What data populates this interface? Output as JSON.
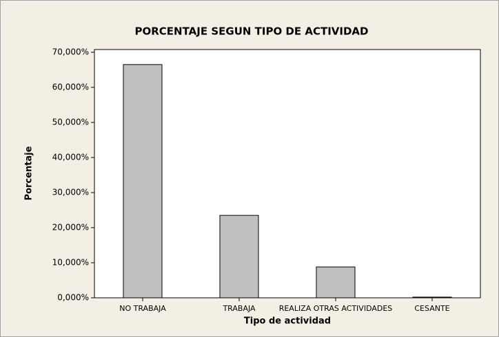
{
  "chart_data": {
    "type": "bar",
    "title": "PORCENTAJE SEGUN TIPO DE ACTIVIDAD",
    "x_label": "Tipo de actividad",
    "y_label": "Porcentaje",
    "categories": [
      "NO TRABAJA",
      "TRABAJA",
      "REALIZA OTRAS ACTIVIDADES",
      "CESANTE"
    ],
    "values": [
      66.5,
      23.5,
      8.8,
      0.2
    ],
    "color": "#c0c0c0",
    "ylim": [
      0,
      70
    ],
    "yticks": [
      {
        "value": 0,
        "label": "0,000%"
      },
      {
        "value": 10,
        "label": "10,000%"
      },
      {
        "value": 20,
        "label": "20,000%"
      },
      {
        "value": 30,
        "label": "30,000%"
      },
      {
        "value": 40,
        "label": "40,000%"
      },
      {
        "value": 50,
        "label": "50,000%"
      },
      {
        "value": 60,
        "label": "60,000%"
      },
      {
        "value": 70,
        "label": "70,000%"
      }
    ],
    "grid": false
  }
}
